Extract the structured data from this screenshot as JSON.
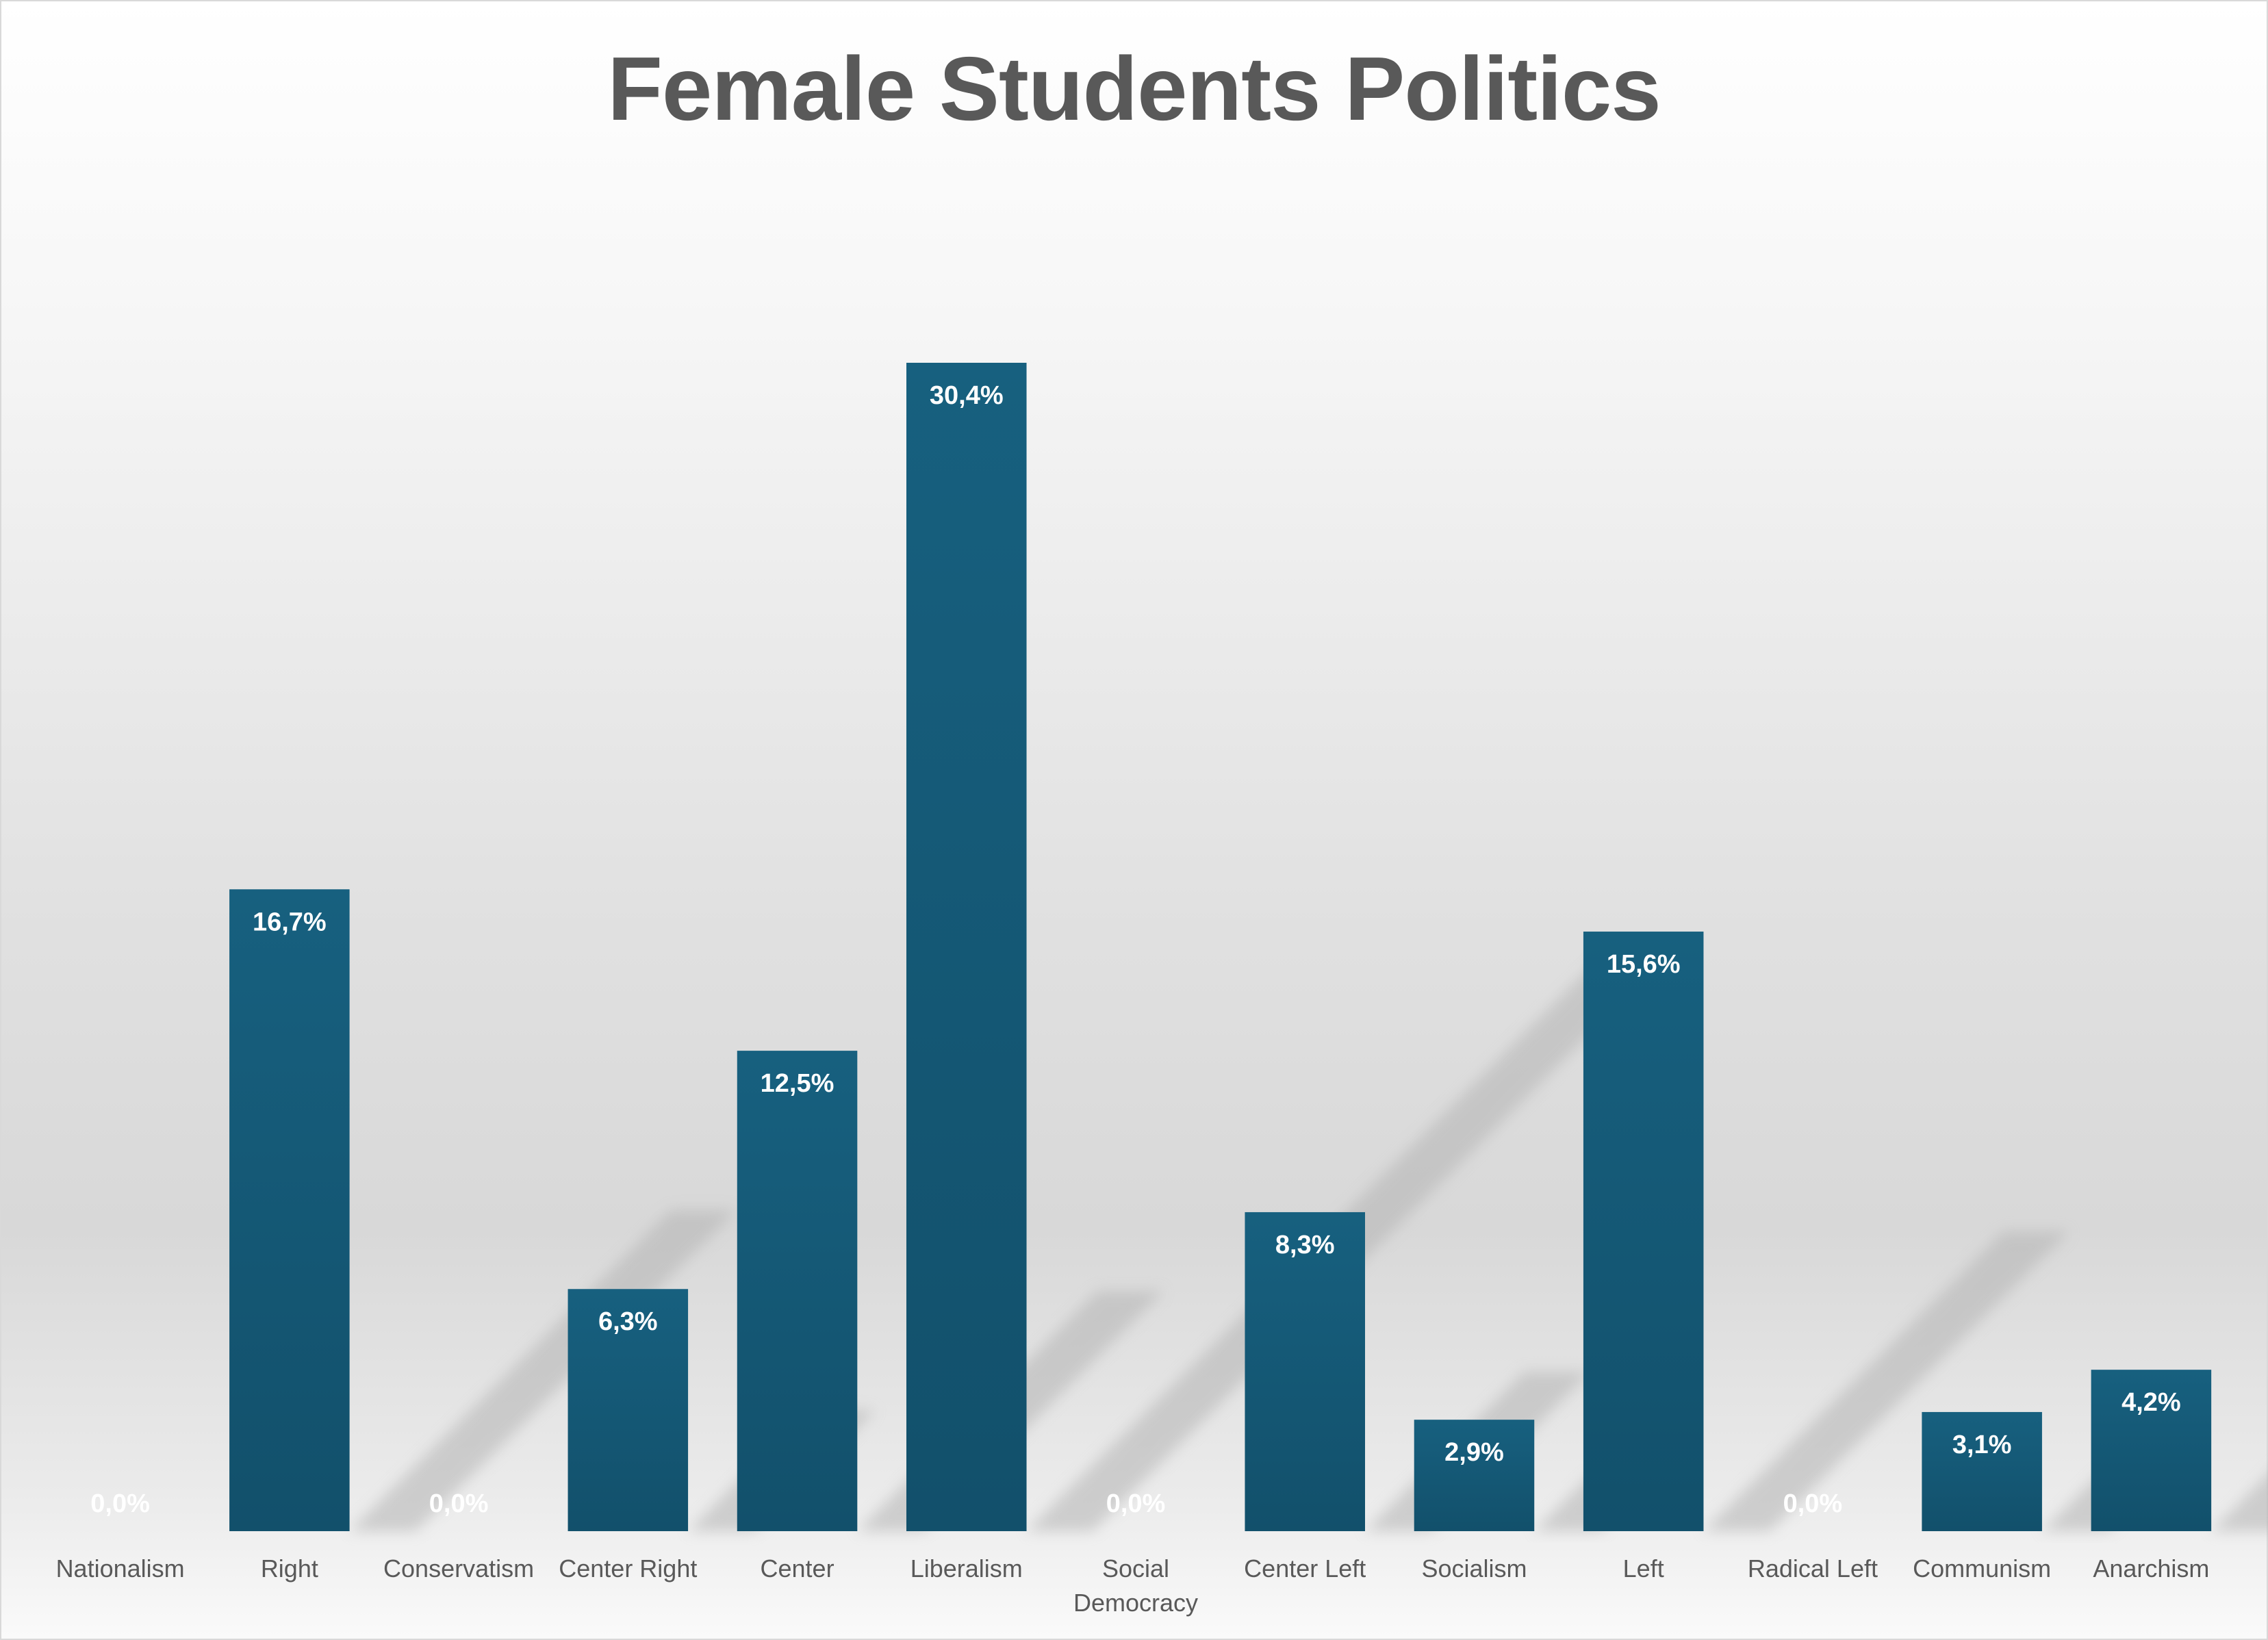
{
  "chart_data": {
    "type": "bar",
    "title": "Female Students Politics",
    "categories": [
      "Nationalism",
      "Right",
      "Conservatism",
      "Center Right",
      "Center",
      "Liberalism",
      "Social Democracy",
      "Center Left",
      "Socialism",
      "Left",
      "Radical Left",
      "Communism",
      "Anarchism"
    ],
    "category_lines": [
      [
        "Nationalism"
      ],
      [
        "Right"
      ],
      [
        "Conservatism"
      ],
      [
        "Center Right"
      ],
      [
        "Center"
      ],
      [
        "Liberalism"
      ],
      [
        "Social",
        "Democracy"
      ],
      [
        "Center Left"
      ],
      [
        "Socialism"
      ],
      [
        "Left"
      ],
      [
        "Radical Left"
      ],
      [
        "Communism"
      ],
      [
        "Anarchism"
      ]
    ],
    "values": [
      0.0,
      16.7,
      0.0,
      6.3,
      12.5,
      30.4,
      0.0,
      8.3,
      2.9,
      15.6,
      0.0,
      3.1,
      4.2
    ],
    "data_labels": [
      "0,0%",
      "16,7%",
      "0,0%",
      "6,3%",
      "12,5%",
      "30,4%",
      "0,0%",
      "8,3%",
      "2,9%",
      "15,6%",
      "0,0%",
      "3,1%",
      "4,2%"
    ],
    "ylim": [
      0,
      35
    ],
    "xlabel": "",
    "ylabel": "",
    "grid": false,
    "legend": "none",
    "colors": {
      "bar_top": "#17607f",
      "bar_bottom": "#12506b",
      "label": "#ffffff",
      "axis_text": "#595959",
      "shadow": "#b4b4b4"
    }
  }
}
